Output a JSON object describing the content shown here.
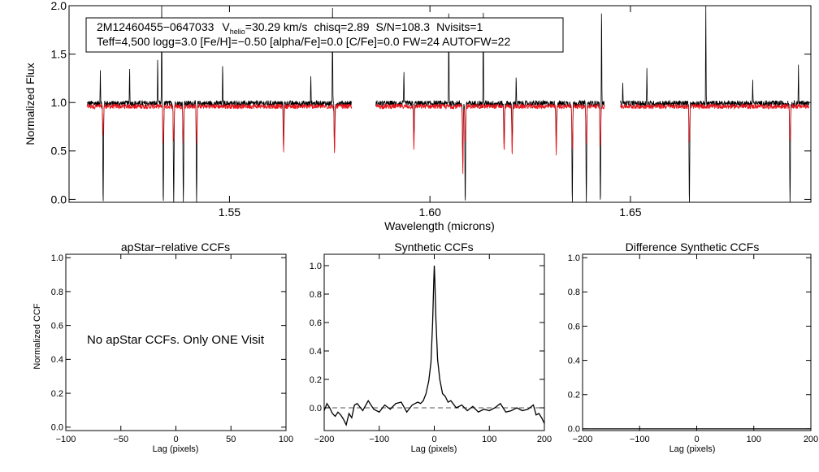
{
  "colors": {
    "observed": "#000000",
    "model": "#e8141b",
    "dashed": "#555555"
  },
  "info_box": {
    "star_id": "2M12460455−0647033",
    "v_label": "V",
    "v_subscript": "helio",
    "v_value": "=30.29 km/s",
    "chisq": "chisq=2.89",
    "snr": "S/N=108.3",
    "nvisits": "Nvisits=1",
    "line2": "Teff=4,500 logg=3.0 [Fe/H]=−0.50 [alpha/Fe]=0.0 [C/Fe]=0.0 FW=24 AUTOFW=22"
  },
  "no_ccf_message": "No apStar CCFs.  Only ONE Visit",
  "chart_data": [
    {
      "id": "spectrum",
      "type": "line",
      "title": "",
      "xlabel": "Wavelength (microns)",
      "ylabel": "Normalized Flux",
      "xlim": [
        1.51,
        1.695
      ],
      "ylim": [
        -0.03,
        2.0
      ],
      "xticks": [
        1.55,
        1.6,
        1.65
      ],
      "xtick_labels": [
        "1.55",
        "1.60",
        "1.65"
      ],
      "yticks": [
        0.0,
        0.5,
        1.0,
        1.5,
        2.0
      ],
      "ytick_labels": [
        "0.0",
        "0.5",
        "1.0",
        "1.5",
        "2.0"
      ],
      "detector_ranges": [
        [
          1.5145,
          1.5805
        ],
        [
          1.5865,
          1.6435
        ],
        [
          1.6475,
          1.6945
        ]
      ],
      "continuum": 0.99,
      "series": [
        {
          "name": "observed spectrum",
          "color": "#000000",
          "absorption_lines": [
            [
              1.5185,
              -0.05
            ],
            [
              1.5335,
              -0.05
            ],
            [
              1.5361,
              -0.05
            ],
            [
              1.5385,
              -0.05
            ],
            [
              1.5418,
              -0.05
            ],
            [
              1.6088,
              -0.05
            ],
            [
              1.6355,
              -0.05
            ],
            [
              1.639,
              -0.05
            ],
            [
              1.6425,
              -0.05
            ],
            [
              1.6647,
              -0.05
            ],
            [
              1.6898,
              -0.05
            ],
            [
              1.6082,
              0.35
            ],
            [
              1.5762,
              0.5
            ],
            [
              1.5635,
              0.55
            ],
            [
              1.596,
              0.6
            ],
            [
              1.6205,
              0.55
            ],
            [
              1.6315,
              0.55
            ],
            [
              1.6185,
              0.55
            ]
          ],
          "emission_lines": [
            [
              1.5331,
              2.0
            ],
            [
              1.5757,
              2.0
            ],
            [
              1.6047,
              2.0
            ],
            [
              1.6133,
              2.0
            ],
            [
              1.6428,
              2.0
            ],
            [
              1.6688,
              2.0
            ],
            [
              1.5178,
              1.35
            ],
            [
              1.5251,
              1.38
            ],
            [
              1.5321,
              1.45
            ],
            [
              1.5483,
              1.38
            ],
            [
              1.5703,
              1.3
            ],
            [
              1.5935,
              1.33
            ],
            [
              1.6215,
              1.28
            ],
            [
              1.6481,
              1.22
            ],
            [
              1.6541,
              1.38
            ],
            [
              1.6805,
              1.22
            ],
            [
              1.6919,
              1.4
            ]
          ]
        },
        {
          "name": "best-fit synthetic model",
          "color": "#e8141b",
          "absorption_lines": [
            [
              1.5185,
              0.7
            ],
            [
              1.5335,
              0.6
            ],
            [
              1.5361,
              0.62
            ],
            [
              1.5385,
              0.62
            ],
            [
              1.5418,
              0.62
            ],
            [
              1.5762,
              0.48
            ],
            [
              1.5635,
              0.52
            ],
            [
              1.596,
              0.55
            ],
            [
              1.6082,
              0.3
            ],
            [
              1.6088,
              0.62
            ],
            [
              1.6205,
              0.5
            ],
            [
              1.6315,
              0.5
            ],
            [
              1.6355,
              0.55
            ],
            [
              1.639,
              0.58
            ],
            [
              1.6425,
              0.55
            ],
            [
              1.6647,
              0.62
            ],
            [
              1.6898,
              0.62
            ],
            [
              1.6185,
              0.52
            ]
          ]
        }
      ]
    },
    {
      "id": "apstar_ccf",
      "type": "line",
      "title": "apStar−relative CCFs",
      "xlabel": "Lag (pixels)",
      "ylabel": "Normalized CCF",
      "xlim": [
        -100,
        100
      ],
      "ylim": [
        -0.02,
        1.02
      ],
      "xticks": [
        -100,
        -50,
        0,
        50,
        100
      ],
      "xtick_labels": [
        "−100",
        "−50",
        "0",
        "50",
        "100"
      ],
      "yticks": [
        0.0,
        0.2,
        0.4,
        0.6,
        0.8,
        1.0
      ],
      "ytick_labels": [
        "0.0",
        "0.2",
        "0.4",
        "0.6",
        "0.8",
        "1.0"
      ],
      "series": []
    },
    {
      "id": "synthetic_ccf",
      "type": "line",
      "title": "Synthetic CCFs",
      "xlabel": "Lag (pixels)",
      "ylabel": "",
      "xlim": [
        -200,
        200
      ],
      "ylim": [
        -0.16,
        1.08
      ],
      "xticks": [
        -200,
        -100,
        0,
        100,
        200
      ],
      "xtick_labels": [
        "−200",
        "−100",
        "0",
        "100",
        "200"
      ],
      "yticks": [
        0.0,
        0.2,
        0.4,
        0.6,
        0.8,
        1.0
      ],
      "ytick_labels": [
        "0.0",
        "0.2",
        "0.4",
        "0.6",
        "0.8",
        "1.0"
      ],
      "reference_line": {
        "y": 0.0,
        "style": "dashed"
      },
      "series": [
        {
          "name": "CCF",
          "x": [
            -200,
            -195,
            -190,
            -185,
            -180,
            -175,
            -170,
            -165,
            -160,
            -155,
            -150,
            -145,
            -140,
            -130,
            -120,
            -110,
            -100,
            -90,
            -80,
            -70,
            -60,
            -50,
            -40,
            -30,
            -25,
            -20,
            -15,
            -10,
            -6,
            -3,
            -1,
            0,
            1,
            3,
            6,
            10,
            15,
            20,
            25,
            30,
            40,
            50,
            60,
            70,
            80,
            90,
            100,
            110,
            120,
            130,
            140,
            150,
            160,
            170,
            180,
            185,
            190,
            195,
            200
          ],
          "y": [
            -0.02,
            0.03,
            0.0,
            -0.04,
            -0.06,
            -0.03,
            -0.05,
            -0.08,
            -0.12,
            -0.04,
            -0.07,
            0.02,
            0.03,
            -0.02,
            0.05,
            -0.01,
            -0.03,
            0.02,
            -0.01,
            0.03,
            0.04,
            -0.03,
            0.02,
            0.04,
            0.03,
            0.05,
            0.1,
            0.19,
            0.32,
            0.6,
            0.88,
            1.0,
            0.9,
            0.62,
            0.34,
            0.2,
            0.1,
            0.08,
            0.04,
            0.05,
            0.0,
            0.02,
            -0.02,
            0.01,
            -0.03,
            -0.01,
            -0.02,
            0.0,
            0.03,
            -0.03,
            -0.02,
            0.0,
            -0.02,
            -0.01,
            0.02,
            -0.05,
            -0.04,
            -0.07,
            -0.11
          ]
        }
      ]
    },
    {
      "id": "difference_ccf",
      "type": "line",
      "title": "Difference Synthetic CCFs",
      "xlabel": "Lag (pixels)",
      "ylabel": "",
      "xlim": [
        -200,
        200
      ],
      "ylim": [
        -0.01,
        1.02
      ],
      "xticks": [
        -200,
        -100,
        0,
        100,
        200
      ],
      "xtick_labels": [
        "−200",
        "−100",
        "0",
        "100",
        "200"
      ],
      "yticks": [
        0.0,
        0.2,
        0.4,
        0.6,
        0.8,
        1.0
      ],
      "ytick_labels": [
        "0.0",
        "0.2",
        "0.4",
        "0.6",
        "0.8",
        "1.0"
      ],
      "series": [
        {
          "name": "difference",
          "x": [
            -200,
            200
          ],
          "y": [
            0.0,
            0.0
          ]
        }
      ]
    }
  ]
}
